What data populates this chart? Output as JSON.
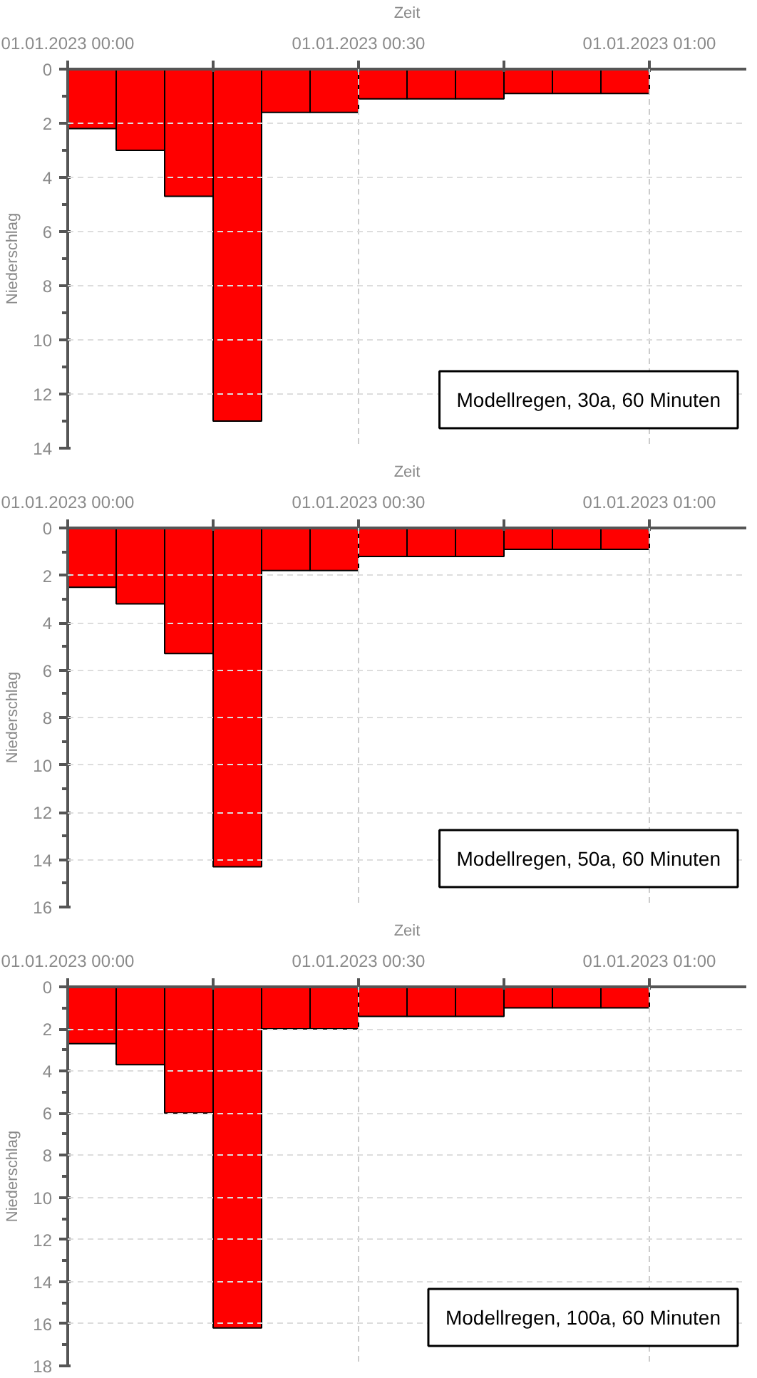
{
  "chart_data": [
    {
      "type": "bar",
      "xlabel": "Zeit",
      "ylabel": "Niederschlag",
      "color": "#ff0000",
      "grid": true,
      "x": [
        "2023-01-01T00:02:30",
        "2023-01-01T00:07:30",
        "2023-01-01T00:12:30",
        "2023-01-01T00:17:30",
        "2023-01-01T00:22:30",
        "2023-01-01T00:27:30",
        "2023-01-01T00:32:30",
        "2023-01-01T00:37:30",
        "2023-01-01T00:42:30",
        "2023-01-01T00:47:30",
        "2023-01-01T00:52:30",
        "2023-01-01T00:57:30"
      ],
      "values": [
        2.2,
        3.0,
        4.7,
        13.0,
        1.6,
        1.6,
        1.1,
        1.1,
        1.1,
        0.9,
        0.9,
        0.9
      ],
      "xlim": [
        "2023-01-01T00:00",
        "2023-01-01T01:10"
      ],
      "xticks": [
        {
          "value": "2023-01-01T00:00",
          "label": "01.01.2023 00:00"
        },
        {
          "value": "2023-01-01T00:15",
          "label": null
        },
        {
          "value": "2023-01-01T00:30",
          "label": "01.01.2023 00:30"
        },
        {
          "value": "2023-01-01T00:45",
          "label": null
        },
        {
          "value": "2023-01-01T01:00",
          "label": "01.01.2023 01:00"
        }
      ],
      "ylim": [
        14,
        0
      ],
      "yticks": [
        0,
        2,
        4,
        6,
        8,
        10,
        12,
        14
      ],
      "annotations": [
        "Modellregen, 30a, 60 Minuten"
      ]
    },
    {
      "type": "bar",
      "xlabel": "Zeit",
      "ylabel": "Niederschlag",
      "color": "#ff0000",
      "grid": true,
      "x": [
        "2023-01-01T00:02:30",
        "2023-01-01T00:07:30",
        "2023-01-01T00:12:30",
        "2023-01-01T00:17:30",
        "2023-01-01T00:22:30",
        "2023-01-01T00:27:30",
        "2023-01-01T00:32:30",
        "2023-01-01T00:37:30",
        "2023-01-01T00:42:30",
        "2023-01-01T00:47:30",
        "2023-01-01T00:52:30",
        "2023-01-01T00:57:30"
      ],
      "values": [
        2.5,
        3.2,
        5.3,
        14.3,
        1.8,
        1.8,
        1.2,
        1.2,
        1.2,
        0.9,
        0.9,
        0.9
      ],
      "xlim": [
        "2023-01-01T00:00",
        "2023-01-01T01:10"
      ],
      "xticks": [
        {
          "value": "2023-01-01T00:00",
          "label": "01.01.2023 00:00"
        },
        {
          "value": "2023-01-01T00:15",
          "label": null
        },
        {
          "value": "2023-01-01T00:30",
          "label": "01.01.2023 00:30"
        },
        {
          "value": "2023-01-01T00:45",
          "label": null
        },
        {
          "value": "2023-01-01T01:00",
          "label": "01.01.2023 01:00"
        }
      ],
      "ylim": [
        16,
        0
      ],
      "yticks": [
        0,
        2,
        4,
        6,
        8,
        10,
        12,
        14,
        16
      ],
      "annotations": [
        "Modellregen, 50a, 60 Minuten"
      ]
    },
    {
      "type": "bar",
      "xlabel": "Zeit",
      "ylabel": "Niederschlag",
      "color": "#ff0000",
      "grid": true,
      "x": [
        "2023-01-01T00:02:30",
        "2023-01-01T00:07:30",
        "2023-01-01T00:12:30",
        "2023-01-01T00:17:30",
        "2023-01-01T00:22:30",
        "2023-01-01T00:27:30",
        "2023-01-01T00:32:30",
        "2023-01-01T00:37:30",
        "2023-01-01T00:42:30",
        "2023-01-01T00:47:30",
        "2023-01-01T00:52:30",
        "2023-01-01T00:57:30"
      ],
      "values": [
        2.7,
        3.7,
        6.0,
        16.2,
        2.0,
        2.0,
        1.4,
        1.4,
        1.4,
        1.0,
        1.0,
        1.0
      ],
      "xlim": [
        "2023-01-01T00:00",
        "2023-01-01T01:10"
      ],
      "xticks": [
        {
          "value": "2023-01-01T00:00",
          "label": "01.01.2023 00:00"
        },
        {
          "value": "2023-01-01T00:15",
          "label": null
        },
        {
          "value": "2023-01-01T00:30",
          "label": "01.01.2023 00:30"
        },
        {
          "value": "2023-01-01T00:45",
          "label": null
        },
        {
          "value": "2023-01-01T01:00",
          "label": "01.01.2023 01:00"
        }
      ],
      "ylim": [
        18,
        0
      ],
      "yticks": [
        0,
        2,
        4,
        6,
        8,
        10,
        12,
        14,
        16,
        18
      ],
      "annotations": [
        "Modellregen, 100a, 60 Minuten"
      ]
    }
  ]
}
